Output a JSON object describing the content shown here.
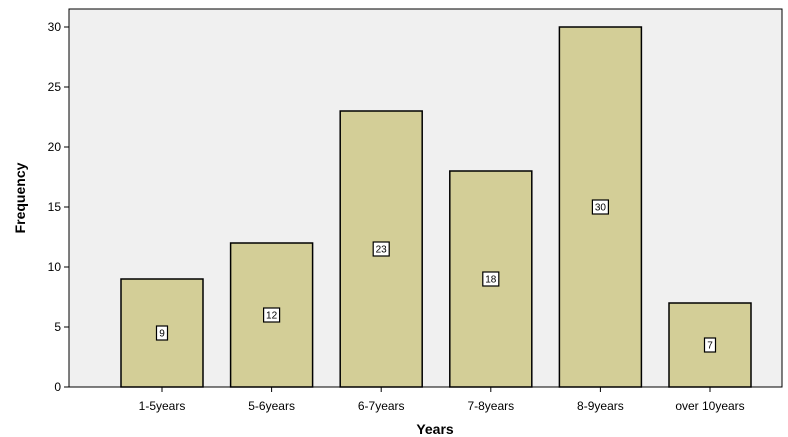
{
  "chart_data": {
    "type": "bar",
    "categories": [
      "1-5years",
      "5-6years",
      "6-7years",
      "7-8years",
      "8-9years",
      "over 10years"
    ],
    "values": [
      9,
      12,
      23,
      18,
      30,
      7
    ],
    "data_labels": [
      "9",
      "12",
      "23",
      "18",
      "30",
      "7"
    ],
    "xlabel": "Years",
    "ylabel": "Frequency",
    "ylim": [
      0,
      30
    ],
    "yticks": [
      0,
      5,
      10,
      15,
      20,
      25,
      30
    ],
    "ytick_labels": [
      "0",
      "5",
      "10",
      "15",
      "20",
      "25",
      "30"
    ],
    "grid": false,
    "legend": "none",
    "colors": {
      "bar_fill": "#D3CE97",
      "bar_stroke": "#000000",
      "plot_background": "#F0F0F0",
      "label_box": "#FFFFFF"
    }
  }
}
